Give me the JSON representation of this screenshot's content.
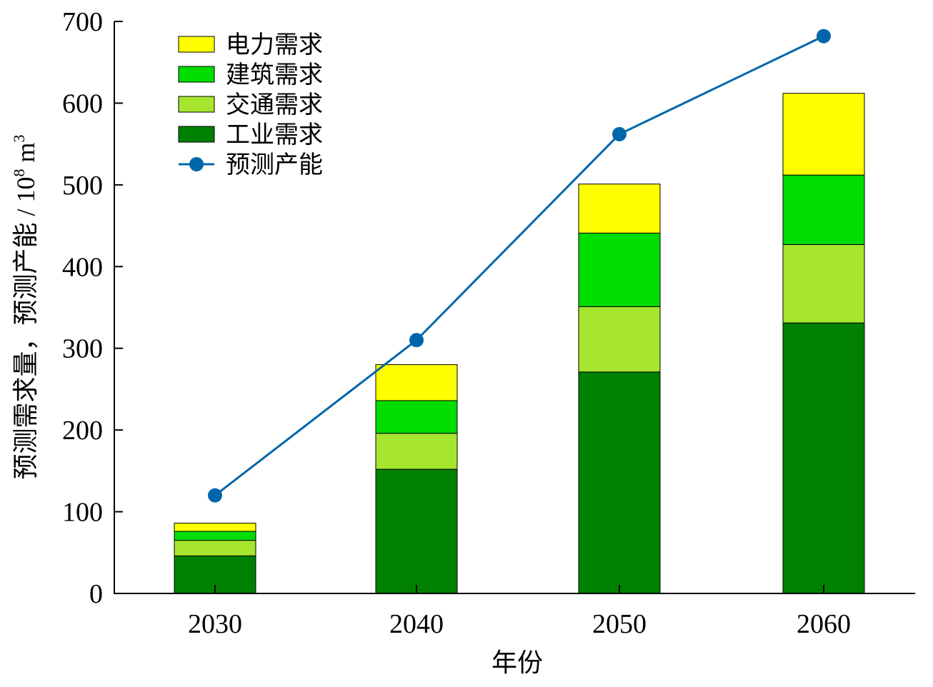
{
  "chart_data": {
    "type": "bar",
    "stacked": true,
    "categories": [
      "2030",
      "2040",
      "2050",
      "2060"
    ],
    "series": [
      {
        "name": "工业需求",
        "values": [
          46,
          152,
          271,
          331
        ],
        "color": "#008000"
      },
      {
        "name": "交通需求",
        "values": [
          19,
          44,
          80,
          96
        ],
        "color": "#a6e62e"
      },
      {
        "name": "建筑需求",
        "values": [
          11,
          40,
          90,
          85
        ],
        "color": "#00dd00"
      },
      {
        "name": "电力需求",
        "values": [
          10,
          44,
          60,
          100
        ],
        "color": "#ffff00"
      }
    ],
    "line_series": {
      "name": "预测产能",
      "values": [
        120,
        310,
        562,
        682
      ],
      "color": "#0066aa"
    },
    "legend": {
      "position": "top-left",
      "order": [
        "电力需求",
        "建筑需求",
        "交通需求",
        "工业需求",
        "预测产能"
      ]
    },
    "xlabel": "年份",
    "ylabel_main": "预测需求量，预测产能 / 10",
    "ylabel_sup1": "8",
    "ylabel_unit": " m",
    "ylabel_sup2": "3",
    "ylim": [
      0,
      700
    ],
    "yticks": [
      "0",
      "100",
      "200",
      "300",
      "400",
      "500",
      "600",
      "700"
    ],
    "grid": false
  }
}
